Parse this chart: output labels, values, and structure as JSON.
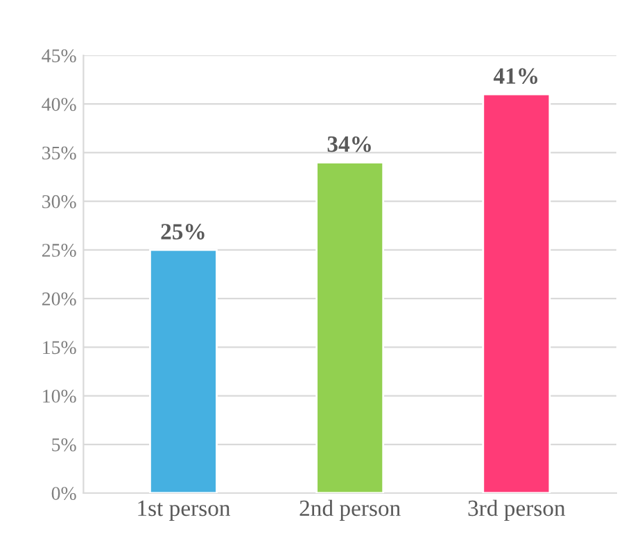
{
  "chart_data": {
    "type": "bar",
    "categories": [
      "1st person",
      "2nd person",
      "3rd person"
    ],
    "values": [
      25,
      34,
      41
    ],
    "colors": [
      "#45b0e1",
      "#92d050",
      "#ff3b77"
    ],
    "value_labels": [
      "25%",
      "34%",
      "41%"
    ],
    "ylim": [
      0,
      45
    ],
    "yticks": [
      {
        "value": 0,
        "label": "0%"
      },
      {
        "value": 5,
        "label": "5%"
      },
      {
        "value": 10,
        "label": "10%"
      },
      {
        "value": 15,
        "label": "15%"
      },
      {
        "value": 20,
        "label": "20%"
      },
      {
        "value": 25,
        "label": "25%"
      },
      {
        "value": 30,
        "label": "30%"
      },
      {
        "value": 35,
        "label": "35%"
      },
      {
        "value": 40,
        "label": "40%"
      },
      {
        "value": 45,
        "label": "45%"
      }
    ],
    "grid": "y"
  }
}
